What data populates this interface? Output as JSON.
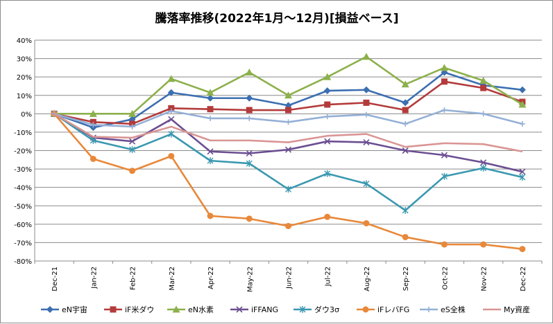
{
  "chart_data": {
    "type": "line",
    "title": "騰落率推移(2022年1月～12月)[損益ベース]",
    "xlabel": "",
    "ylabel": "",
    "categories": [
      "Dec-21",
      "Jan-22",
      "Feb-22",
      "Mar-22",
      "Apr-22",
      "May-22",
      "Jun-22",
      "Jul-22",
      "Aug-22",
      "Sep-22",
      "Oct-22",
      "Nov-22",
      "Dec-22"
    ],
    "ylim": [
      -80,
      40
    ],
    "yticks": [
      40,
      30,
      20,
      10,
      0,
      -10,
      -20,
      -30,
      -40,
      -50,
      -60,
      -70,
      -80
    ],
    "ytick_labels": [
      "40%",
      "30%",
      "20%",
      "10%",
      "0%",
      "-10%",
      "-20%",
      "-30%",
      "-40%",
      "-50%",
      "-60%",
      "-70%",
      "-80%"
    ],
    "grid": "horizontal",
    "legend_position": "bottom",
    "series": [
      {
        "name": "eN宇宙",
        "color": "#3c6fb0",
        "marker": "diamond",
        "values": [
          0,
          -7.5,
          -3,
          11.5,
          8.5,
          8.5,
          4.5,
          12.5,
          13,
          6,
          22.5,
          15.5,
          13
        ]
      },
      {
        "name": "iF米ダウ",
        "color": "#b33b3b",
        "marker": "square",
        "values": [
          0,
          -4.5,
          -5.5,
          3,
          2.5,
          2,
          2,
          5,
          6,
          2,
          17.5,
          14,
          6.5
        ]
      },
      {
        "name": "eN水素",
        "color": "#8cb04b",
        "marker": "triangle",
        "values": [
          0,
          0,
          0,
          19,
          11.5,
          22.5,
          10,
          20,
          31,
          16,
          25,
          18,
          5
        ]
      },
      {
        "name": "iFFANG",
        "color": "#6b4e91",
        "marker": "x",
        "values": [
          0,
          -13,
          -15,
          -3,
          -20.5,
          -21.5,
          -19.5,
          -15,
          -15.5,
          -20,
          -22.5,
          -26.5,
          -31.5
        ]
      },
      {
        "name": "ダウ3σ",
        "color": "#3a98b0",
        "marker": "asterisk",
        "values": [
          0,
          -14.5,
          -19.5,
          -11,
          -25.5,
          -27,
          -41,
          -32.5,
          -38,
          -52.5,
          -34,
          -29.5,
          -34.5
        ]
      },
      {
        "name": "iFレバFG",
        "color": "#e8883a",
        "marker": "circle",
        "values": [
          0,
          -24.5,
          -31,
          -23,
          -55.5,
          -57,
          -61,
          -56,
          -59.5,
          -67,
          -71,
          -71,
          -73.5
        ]
      },
      {
        "name": "eS全株",
        "color": "#94b0d6",
        "marker": "plus",
        "values": [
          0,
          -6,
          -7,
          1.5,
          -2.5,
          -2.5,
          -4.5,
          -1.5,
          -0.5,
          -5.5,
          2,
          0,
          -5.5
        ]
      },
      {
        "name": "My資産",
        "color": "#d99594",
        "marker": "none",
        "values": [
          0,
          -12.5,
          -13,
          -7,
          -14.5,
          -14.5,
          -15.5,
          -12,
          -11,
          -18,
          -16,
          -16.5,
          -20.5
        ]
      }
    ]
  }
}
